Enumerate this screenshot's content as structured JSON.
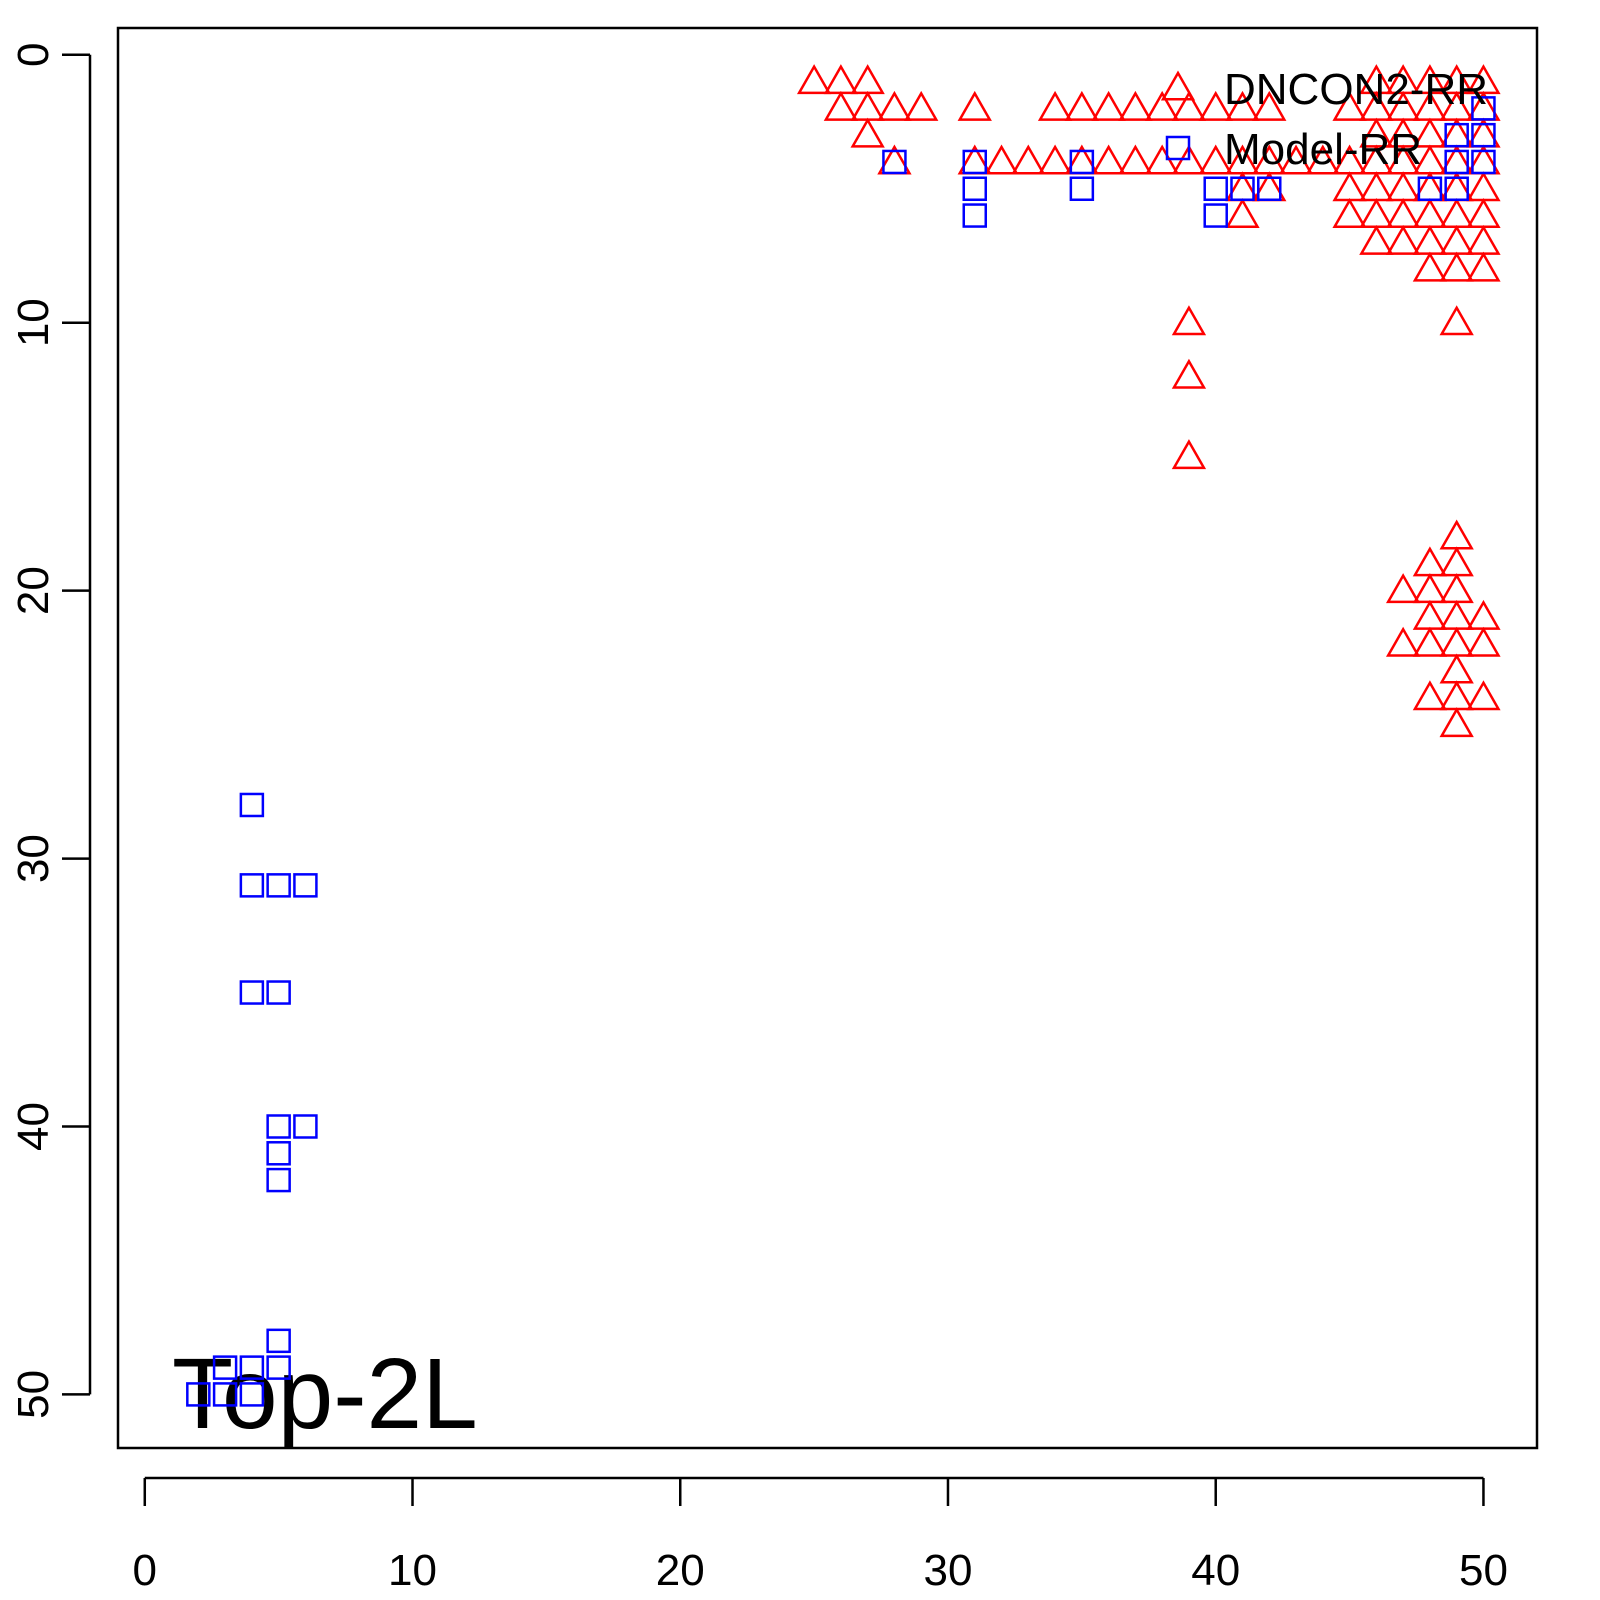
{
  "chart_data": {
    "type": "scatter",
    "annotation": "Top-2L",
    "xlim": [
      -1,
      52
    ],
    "ylim": [
      -1,
      52
    ],
    "y_inverted": true,
    "xticks": [
      0,
      10,
      20,
      30,
      40,
      50
    ],
    "yticks": [
      0,
      10,
      20,
      30,
      40,
      50
    ],
    "legend": "top-right",
    "series": [
      {
        "name": "DNCON2-RR",
        "color": "#ff0000",
        "marker": "triangle",
        "x": [
          25,
          26,
          27,
          46,
          47,
          48,
          49,
          50,
          26,
          27,
          28,
          29,
          31,
          34,
          35,
          36,
          37,
          38,
          39,
          40,
          41,
          42,
          45,
          46,
          47,
          48,
          49,
          50,
          27,
          46,
          47,
          48,
          49,
          50,
          28,
          31,
          32,
          33,
          34,
          35,
          36,
          37,
          38,
          39,
          40,
          41,
          42,
          43,
          44,
          45,
          46,
          47,
          48,
          49,
          50,
          41,
          42,
          45,
          46,
          47,
          48,
          49,
          50,
          41,
          45,
          46,
          47,
          48,
          49,
          50,
          46,
          47,
          48,
          49,
          50,
          48,
          49,
          50,
          39,
          49,
          39,
          39,
          49,
          48,
          49,
          47,
          48,
          49,
          48,
          49,
          50,
          47,
          48,
          49,
          50,
          49,
          48,
          49,
          50,
          49
        ],
        "values": [
          1,
          1,
          1,
          1,
          1,
          1,
          1,
          1,
          2,
          2,
          2,
          2,
          2,
          2,
          2,
          2,
          2,
          2,
          2,
          2,
          2,
          2,
          2,
          2,
          2,
          2,
          2,
          2,
          3,
          3,
          3,
          3,
          3,
          3,
          4,
          4,
          4,
          4,
          4,
          4,
          4,
          4,
          4,
          4,
          4,
          4,
          4,
          4,
          4,
          4,
          4,
          4,
          4,
          4,
          4,
          5,
          5,
          5,
          5,
          5,
          5,
          5,
          5,
          6,
          6,
          6,
          6,
          6,
          6,
          6,
          7,
          7,
          7,
          7,
          7,
          8,
          8,
          8,
          10,
          10,
          12,
          15,
          18,
          19,
          19,
          20,
          20,
          20,
          21,
          21,
          21,
          22,
          22,
          22,
          22,
          23,
          24,
          24,
          24,
          25
        ]
      },
      {
        "name": "Model-RR",
        "color": "#0000ff",
        "marker": "square",
        "x": [
          28,
          31,
          31,
          31,
          35,
          35,
          40,
          40,
          41,
          42,
          48,
          49,
          49,
          49,
          50,
          50,
          50,
          4,
          4,
          5,
          6,
          4,
          5,
          5,
          6,
          5,
          5,
          5,
          3,
          4,
          5,
          2,
          3,
          4
        ],
        "values": [
          4,
          4,
          5,
          6,
          4,
          5,
          5,
          6,
          5,
          5,
          5,
          3,
          4,
          5,
          2,
          3,
          4,
          28,
          31,
          31,
          31,
          35,
          35,
          40,
          40,
          41,
          42,
          48,
          49,
          49,
          49,
          50,
          50,
          50
        ]
      }
    ]
  }
}
